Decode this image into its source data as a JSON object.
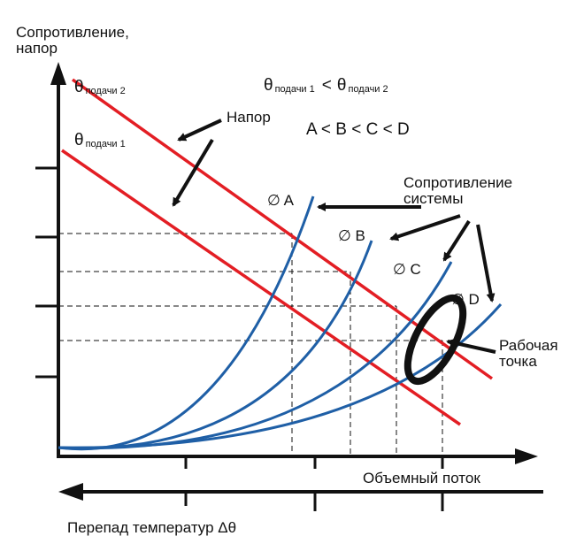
{
  "y_axis_label_line1": "Сопротивление,",
  "y_axis_label_line2": "напор",
  "x_axis_label": "Объемный поток",
  "bottom_label": "Перепад температур Δθ",
  "theta_symbol": "θ",
  "theta2_sub": "подачи 2",
  "theta1_sub": "подачи 1",
  "relation_less": "<",
  "order_text": "A < B < C < D",
  "napor_label": "Напор",
  "system_resistance_line1": "Сопротивление",
  "system_resistance_line2": "системы",
  "curve_labels": [
    "∅ A",
    "∅ B",
    "∅ C",
    "∅ D"
  ],
  "working_point_line1": "Рабочая",
  "working_point_line2": "точка",
  "colors": {
    "pump_line": "#e31e24",
    "system_curve": "#1f5fa6",
    "axis": "#111111",
    "ellipse": "#111111"
  }
}
